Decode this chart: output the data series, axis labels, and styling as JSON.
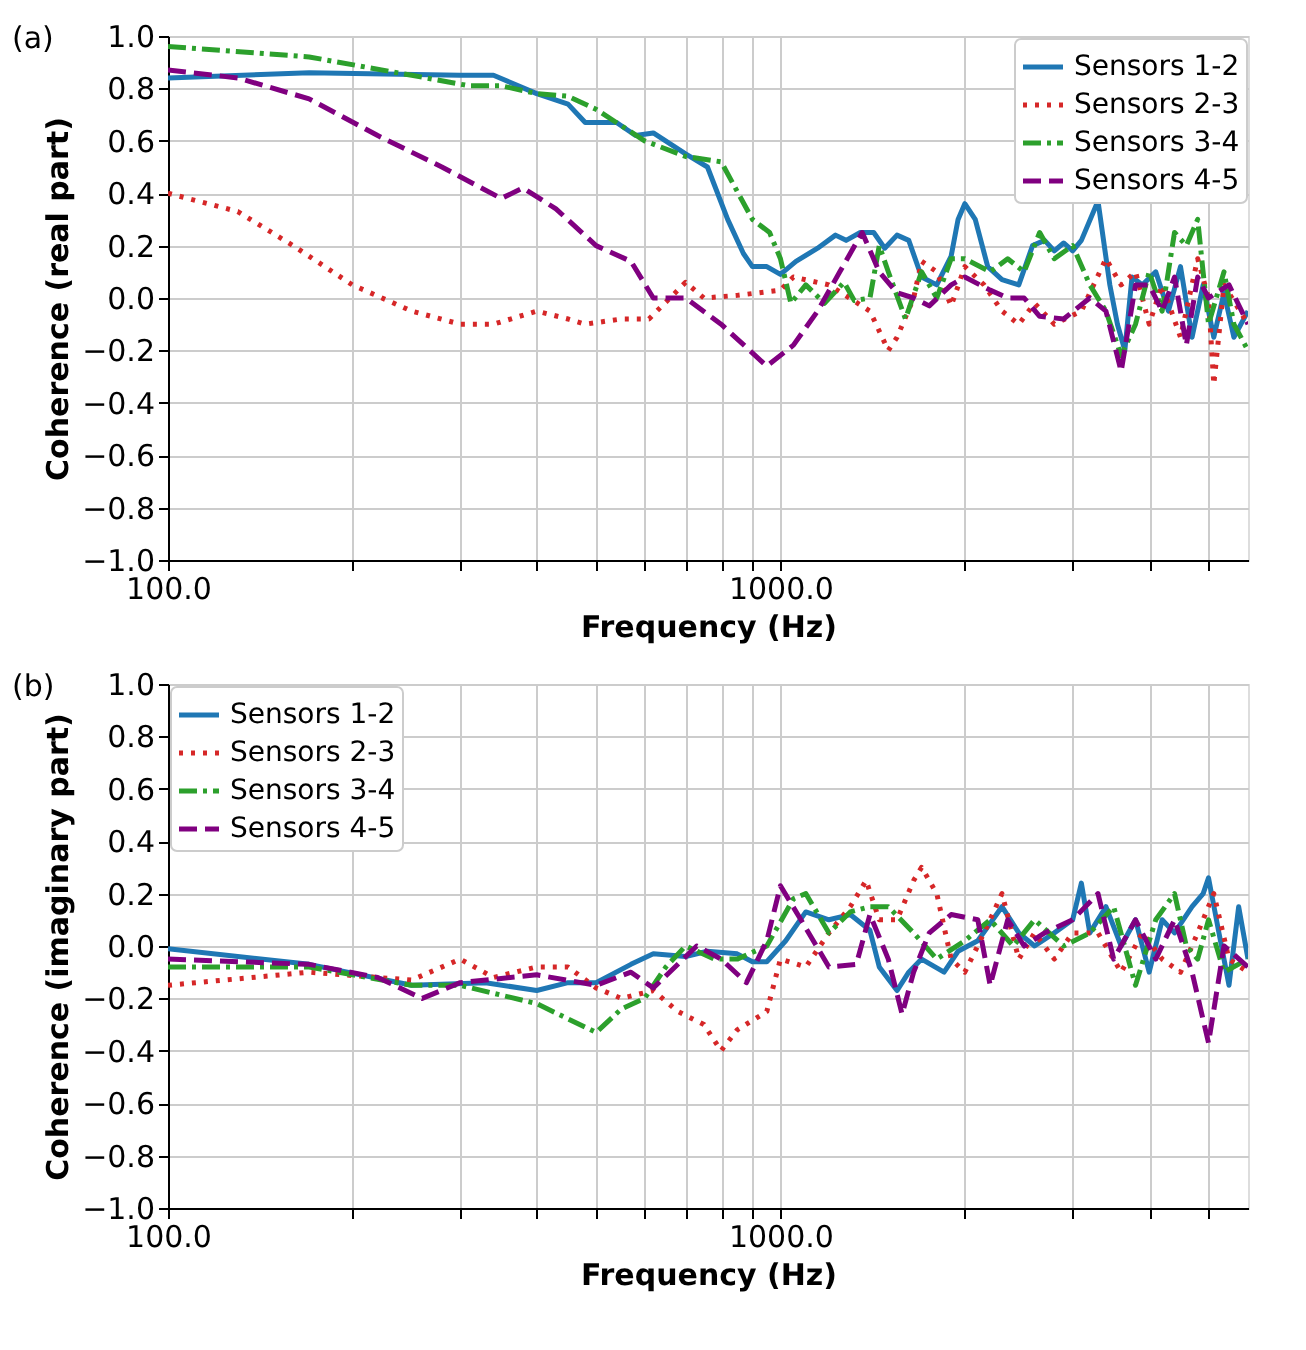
{
  "chart_data": [
    {
      "type": "line",
      "annotations": [
        "(a)"
      ],
      "xlabel": "Frequency (Hz)",
      "ylabel": "Coherence (real part)",
      "log": "x",
      "grid": true,
      "legend": "top right",
      "marker": "none",
      "xlim": [
        100,
        5800
      ],
      "ylim": [
        -1.0,
        1.0
      ],
      "xticks": [
        {
          "value": 100,
          "label": "100.0"
        },
        {
          "value": 200,
          "label": null
        },
        {
          "value": 300,
          "label": null
        },
        {
          "value": 400,
          "label": null
        },
        {
          "value": 500,
          "label": null
        },
        {
          "value": 600,
          "label": null
        },
        {
          "value": 700,
          "label": null
        },
        {
          "value": 800,
          "label": null
        },
        {
          "value": 900,
          "label": null
        },
        {
          "value": 1000,
          "label": "1000.0"
        },
        {
          "value": 2000,
          "label": null
        },
        {
          "value": 3000,
          "label": null
        },
        {
          "value": 4000,
          "label": null
        },
        {
          "value": 5000,
          "label": null
        }
      ],
      "yticks": [
        {
          "value": -1.0,
          "label": "−1.0"
        },
        {
          "value": -0.8,
          "label": "−0.8"
        },
        {
          "value": -0.6,
          "label": "−0.6"
        },
        {
          "value": -0.4,
          "label": "−0.4"
        },
        {
          "value": -0.2,
          "label": "−0.2"
        },
        {
          "value": 0.0,
          "label": "0.0"
        },
        {
          "value": 0.2,
          "label": "0.2"
        },
        {
          "value": 0.4,
          "label": "0.4"
        },
        {
          "value": 0.6,
          "label": "0.6"
        },
        {
          "value": 0.8,
          "label": "0.8"
        },
        {
          "value": 1.0,
          "label": "1.0"
        }
      ],
      "series": [
        {
          "name": "Sensors 1-2",
          "color": "#1f77b4",
          "line_style": "solid",
          "x": [
            100,
            170,
            300,
            340,
            400,
            450,
            480,
            540,
            580,
            620,
            700,
            760,
            820,
            870,
            900,
            950,
            1000,
            1060,
            1150,
            1230,
            1280,
            1350,
            1420,
            1480,
            1550,
            1620,
            1700,
            1800,
            1900,
            1950,
            2000,
            2080,
            2180,
            2300,
            2450,
            2580,
            2700,
            2800,
            2900,
            3000,
            3100,
            3300,
            3450,
            3550,
            3650,
            3750,
            3900,
            4100,
            4300,
            4500,
            4700,
            4900,
            5100,
            5300,
            5500,
            5800
          ],
          "values": [
            0.84,
            0.86,
            0.85,
            0.85,
            0.78,
            0.74,
            0.67,
            0.67,
            0.62,
            0.63,
            0.55,
            0.5,
            0.3,
            0.17,
            0.12,
            0.12,
            0.09,
            0.14,
            0.19,
            0.24,
            0.22,
            0.25,
            0.25,
            0.19,
            0.24,
            0.22,
            0.08,
            0.05,
            0.16,
            0.3,
            0.36,
            0.3,
            0.12,
            0.07,
            0.05,
            0.2,
            0.22,
            0.18,
            0.21,
            0.18,
            0.22,
            0.37,
            0.05,
            -0.1,
            -0.2,
            0.08,
            0.05,
            0.1,
            -0.05,
            0.12,
            -0.15,
            0.05,
            -0.15,
            0.02,
            -0.15,
            -0.05
          ]
        },
        {
          "name": "Sensors 2-3",
          "color": "#d62728",
          "line_style": "dotted",
          "x": [
            100,
            130,
            160,
            200,
            250,
            300,
            340,
            400,
            450,
            480,
            550,
            610,
            680,
            700,
            750,
            850,
            1000,
            1050,
            1200,
            1400,
            1500,
            1550,
            1650,
            1700,
            1800,
            1900,
            2000,
            2150,
            2300,
            2450,
            2600,
            2800,
            3100,
            3400,
            3600,
            3800,
            4000,
            4200,
            4500,
            4800,
            5000,
            5100,
            5300,
            5800
          ],
          "values": [
            0.4,
            0.33,
            0.2,
            0.05,
            -0.05,
            -0.1,
            -0.1,
            -0.05,
            -0.08,
            -0.1,
            -0.08,
            -0.08,
            0.03,
            0.06,
            0.0,
            0.01,
            0.03,
            0.08,
            0.05,
            -0.05,
            -0.2,
            -0.15,
            0.0,
            0.14,
            0.1,
            -0.03,
            0.12,
            0.05,
            -0.05,
            -0.1,
            -0.02,
            -0.1,
            -0.05,
            0.15,
            0.05,
            0.1,
            -0.1,
            0.05,
            -0.15,
            0.15,
            0.0,
            -0.33,
            0.05,
            -0.1
          ]
        },
        {
          "name": "Sensors 3-4",
          "color": "#2ca02c",
          "line_style": "dashdot",
          "x": [
            100,
            170,
            250,
            310,
            350,
            400,
            450,
            500,
            600,
            700,
            800,
            900,
            960,
            1000,
            1040,
            1100,
            1180,
            1270,
            1320,
            1400,
            1450,
            1500,
            1600,
            1700,
            1800,
            1900,
            2000,
            2200,
            2350,
            2500,
            2650,
            2800,
            3000,
            3200,
            3400,
            3600,
            3800,
            4000,
            4200,
            4400,
            4600,
            4800,
            5000,
            5300,
            5500,
            5800
          ],
          "values": [
            0.96,
            0.92,
            0.85,
            0.81,
            0.81,
            0.78,
            0.77,
            0.72,
            0.6,
            0.54,
            0.52,
            0.3,
            0.25,
            0.15,
            -0.02,
            0.05,
            -0.02,
            0.06,
            -0.01,
            0.0,
            0.2,
            0.1,
            -0.08,
            0.1,
            0.0,
            0.15,
            0.15,
            0.1,
            0.15,
            0.1,
            0.25,
            0.15,
            0.2,
            0.05,
            -0.05,
            -0.22,
            -0.1,
            0.1,
            -0.05,
            0.25,
            0.2,
            0.3,
            -0.1,
            0.1,
            -0.1,
            -0.2
          ]
        },
        {
          "name": "Sensors 4-5",
          "color": "#800080",
          "line_style": "dashed",
          "x": [
            100,
            130,
            170,
            220,
            280,
            350,
            380,
            430,
            500,
            570,
            620,
            700,
            800,
            950,
            1050,
            1150,
            1250,
            1360,
            1450,
            1550,
            1650,
            1750,
            1900,
            2000,
            2200,
            2350,
            2500,
            2650,
            2900,
            3200,
            3400,
            3600,
            3800,
            4000,
            4200,
            4400,
            4600,
            4800,
            5000,
            5400,
            5800
          ],
          "values": [
            0.87,
            0.84,
            0.76,
            0.62,
            0.5,
            0.38,
            0.42,
            0.34,
            0.2,
            0.14,
            0.0,
            0.0,
            -0.1,
            -0.26,
            -0.18,
            -0.05,
            0.1,
            0.25,
            0.1,
            0.02,
            0.0,
            -0.03,
            0.05,
            0.08,
            0.03,
            0.0,
            0.0,
            -0.07,
            -0.08,
            0.0,
            -0.05,
            -0.28,
            0.05,
            0.05,
            -0.05,
            0.08,
            -0.18,
            0.08,
            0.0,
            0.05,
            -0.1
          ]
        }
      ]
    },
    {
      "type": "line",
      "annotations": [
        "(b)"
      ],
      "xlabel": "Frequency (Hz)",
      "ylabel": "Coherence (imaginary part)",
      "log": "x",
      "grid": true,
      "legend": "top left",
      "marker": "none",
      "xlim": [
        100,
        5800
      ],
      "ylim": [
        -1.0,
        1.0
      ],
      "xticks": [
        {
          "value": 100,
          "label": "100.0"
        },
        {
          "value": 200,
          "label": null
        },
        {
          "value": 300,
          "label": null
        },
        {
          "value": 400,
          "label": null
        },
        {
          "value": 500,
          "label": null
        },
        {
          "value": 600,
          "label": null
        },
        {
          "value": 700,
          "label": null
        },
        {
          "value": 800,
          "label": null
        },
        {
          "value": 900,
          "label": null
        },
        {
          "value": 1000,
          "label": "1000.0"
        },
        {
          "value": 2000,
          "label": null
        },
        {
          "value": 3000,
          "label": null
        },
        {
          "value": 4000,
          "label": null
        },
        {
          "value": 5000,
          "label": null
        }
      ],
      "yticks": [
        {
          "value": -1.0,
          "label": "−1.0"
        },
        {
          "value": -0.8,
          "label": "−0.8"
        },
        {
          "value": -0.6,
          "label": "−0.6"
        },
        {
          "value": -0.4,
          "label": "−0.4"
        },
        {
          "value": -0.2,
          "label": "−0.2"
        },
        {
          "value": 0.0,
          "label": "0.0"
        },
        {
          "value": 0.2,
          "label": "0.2"
        },
        {
          "value": 0.4,
          "label": "0.4"
        },
        {
          "value": 0.6,
          "label": "0.6"
        },
        {
          "value": 0.8,
          "label": "0.8"
        },
        {
          "value": 1.0,
          "label": "1.0"
        }
      ],
      "series": [
        {
          "name": "Sensors 1-2",
          "color": "#1f77b4",
          "line_style": "solid",
          "x": [
            100,
            170,
            250,
            330,
            400,
            450,
            500,
            570,
            620,
            700,
            760,
            850,
            900,
            950,
            1020,
            1100,
            1200,
            1300,
            1400,
            1450,
            1550,
            1620,
            1700,
            1850,
            1950,
            2100,
            2300,
            2450,
            2600,
            2800,
            3000,
            3100,
            3200,
            3400,
            3600,
            3800,
            4000,
            4200,
            4400,
            4700,
            4900,
            5000,
            5200,
            5400,
            5600,
            5800
          ],
          "values": [
            -0.01,
            -0.07,
            -0.15,
            -0.14,
            -0.17,
            -0.14,
            -0.14,
            -0.07,
            -0.03,
            -0.04,
            -0.02,
            -0.03,
            -0.06,
            -0.06,
            0.02,
            0.13,
            0.1,
            0.12,
            0.06,
            -0.08,
            -0.17,
            -0.1,
            -0.05,
            -0.1,
            -0.02,
            0.02,
            0.15,
            0.05,
            0.0,
            0.05,
            0.1,
            0.24,
            0.05,
            0.15,
            0.0,
            0.1,
            -0.1,
            0.1,
            0.05,
            0.15,
            0.2,
            0.26,
            0.05,
            -0.15,
            0.15,
            -0.05
          ]
        },
        {
          "name": "Sensors 2-3",
          "color": "#d62728",
          "line_style": "dotted",
          "x": [
            100,
            170,
            250,
            300,
            340,
            400,
            450,
            500,
            550,
            620,
            680,
            750,
            800,
            850,
            950,
            1000,
            1100,
            1200,
            1300,
            1380,
            1450,
            1550,
            1650,
            1700,
            1800,
            1900,
            2000,
            2150,
            2300,
            2450,
            2600,
            2800,
            3000,
            3300,
            3600,
            3900,
            4200,
            4500,
            4800,
            5100,
            5400,
            5800
          ],
          "values": [
            -0.15,
            -0.1,
            -0.13,
            -0.05,
            -0.12,
            -0.08,
            -0.08,
            -0.16,
            -0.2,
            -0.17,
            -0.25,
            -0.3,
            -0.4,
            -0.32,
            -0.25,
            -0.05,
            -0.08,
            0.05,
            0.15,
            0.25,
            0.1,
            0.1,
            0.25,
            0.3,
            0.2,
            -0.05,
            -0.1,
            0.05,
            0.2,
            -0.05,
            0.05,
            -0.05,
            0.05,
            0.05,
            -0.1,
            0.05,
            -0.05,
            -0.1,
            0.05,
            0.2,
            -0.05,
            -0.1
          ]
        },
        {
          "name": "Sensors 3-4",
          "color": "#2ca02c",
          "line_style": "dashdot",
          "x": [
            100,
            170,
            250,
            300,
            400,
            500,
            550,
            600,
            650,
            700,
            780,
            850,
            950,
            1050,
            1100,
            1200,
            1300,
            1400,
            1500,
            1650,
            1800,
            2000,
            2200,
            2400,
            2600,
            2900,
            3200,
            3500,
            3800,
            4100,
            4400,
            4600,
            4800,
            5000,
            5300,
            5800
          ],
          "values": [
            -0.08,
            -0.08,
            -0.15,
            -0.15,
            -0.22,
            -0.33,
            -0.24,
            -0.2,
            -0.08,
            0.0,
            -0.05,
            -0.05,
            0.0,
            0.18,
            0.2,
            0.05,
            0.13,
            0.15,
            0.15,
            0.05,
            -0.05,
            0.02,
            0.1,
            0.0,
            0.1,
            0.0,
            0.05,
            0.15,
            -0.15,
            0.1,
            0.2,
            0.0,
            -0.05,
            0.1,
            -0.1,
            -0.05
          ]
        },
        {
          "name": "Sensors 4-5",
          "color": "#800080",
          "line_style": "dashed",
          "x": [
            100,
            170,
            220,
            260,
            300,
            400,
            500,
            570,
            620,
            730,
            800,
            880,
            950,
            1000,
            1080,
            1200,
            1330,
            1400,
            1500,
            1580,
            1650,
            1750,
            1900,
            2100,
            2200,
            2350,
            2500,
            2700,
            3000,
            3300,
            3500,
            3800,
            4100,
            4400,
            4700,
            5000,
            5300,
            5800
          ],
          "values": [
            -0.05,
            -0.07,
            -0.12,
            -0.2,
            -0.14,
            -0.11,
            -0.15,
            -0.1,
            -0.16,
            0.0,
            -0.05,
            -0.14,
            0.02,
            0.23,
            0.1,
            -0.08,
            -0.07,
            0.12,
            -0.05,
            -0.26,
            -0.1,
            0.05,
            0.12,
            0.1,
            -0.15,
            0.1,
            0.0,
            0.05,
            0.1,
            0.2,
            -0.05,
            0.1,
            -0.05,
            0.1,
            -0.1,
            -0.37,
            0.0,
            -0.08
          ]
        }
      ]
    }
  ]
}
